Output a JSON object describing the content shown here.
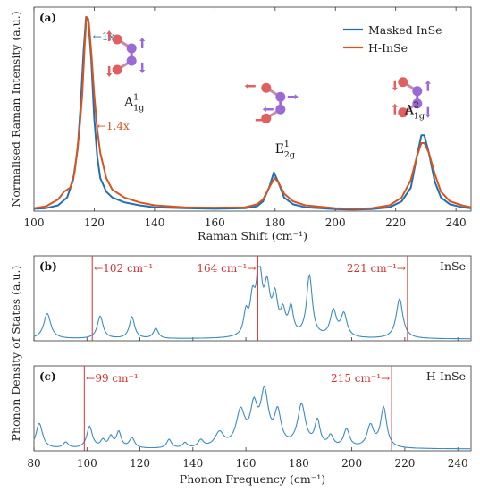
{
  "chart_data": [
    {
      "panel": "(a)",
      "type": "line",
      "xlabel": "Raman Shift (cm⁻¹)",
      "ylabel": "Normalised Raman Intensity (a.u.)",
      "xlim": [
        100,
        245
      ],
      "ylim": [
        0,
        1.05
      ],
      "x_ticks": [
        100,
        120,
        140,
        160,
        180,
        200,
        220,
        240
      ],
      "legend_position": "top-right",
      "grid": false,
      "series": [
        {
          "name": "Masked InSe",
          "color": "#1f6fb2",
          "points": [
            [
              100,
              0.012
            ],
            [
              104,
              0.015
            ],
            [
              108,
              0.03
            ],
            [
              111,
              0.07
            ],
            [
              113,
              0.16
            ],
            [
              114.5,
              0.32
            ],
            [
              115.5,
              0.55
            ],
            [
              116.5,
              0.83
            ],
            [
              117.3,
              1.0
            ],
            [
              118,
              0.99
            ],
            [
              119,
              0.78
            ],
            [
              120,
              0.48
            ],
            [
              121,
              0.28
            ],
            [
              122,
              0.17
            ],
            [
              124,
              0.1
            ],
            [
              126,
              0.07
            ],
            [
              130,
              0.045
            ],
            [
              135,
              0.03
            ],
            [
              140,
              0.02
            ],
            [
              150,
              0.015
            ],
            [
              160,
              0.012
            ],
            [
              170,
              0.015
            ],
            [
              174,
              0.025
            ],
            [
              176,
              0.05
            ],
            [
              178,
              0.12
            ],
            [
              179.6,
              0.2
            ],
            [
              181,
              0.15
            ],
            [
              183,
              0.07
            ],
            [
              186,
              0.035
            ],
            [
              190,
              0.02
            ],
            [
              200,
              0.01
            ],
            [
              206,
              0.008
            ],
            [
              212,
              0.01
            ],
            [
              218,
              0.02
            ],
            [
              222,
              0.05
            ],
            [
              225,
              0.12
            ],
            [
              227,
              0.28
            ],
            [
              228.5,
              0.39
            ],
            [
              229.5,
              0.39
            ],
            [
              231,
              0.3
            ],
            [
              233,
              0.15
            ],
            [
              235,
              0.07
            ],
            [
              238,
              0.035
            ],
            [
              242,
              0.02
            ],
            [
              245,
              0.015
            ]
          ]
        },
        {
          "name": "H-InSe",
          "color": "#d9531e",
          "points": [
            [
              100,
              0.015
            ],
            [
              104,
              0.025
            ],
            [
              108,
              0.06
            ],
            [
              110,
              0.1
            ],
            [
              112,
              0.12
            ],
            [
              113.5,
              0.2
            ],
            [
              115,
              0.4
            ],
            [
              116,
              0.6
            ],
            [
              116.8,
              0.85
            ],
            [
              117.4,
              1.0
            ],
            [
              118.2,
              0.97
            ],
            [
              119,
              0.82
            ],
            [
              120,
              0.6
            ],
            [
              121,
              0.42
            ],
            [
              122,
              0.3
            ],
            [
              124,
              0.17
            ],
            [
              126,
              0.11
            ],
            [
              130,
              0.07
            ],
            [
              135,
              0.045
            ],
            [
              140,
              0.03
            ],
            [
              150,
              0.02
            ],
            [
              160,
              0.018
            ],
            [
              170,
              0.02
            ],
            [
              174,
              0.035
            ],
            [
              176,
              0.06
            ],
            [
              178,
              0.12
            ],
            [
              179.8,
              0.17
            ],
            [
              181,
              0.15
            ],
            [
              183,
              0.09
            ],
            [
              186,
              0.05
            ],
            [
              190,
              0.03
            ],
            [
              200,
              0.015
            ],
            [
              206,
              0.012
            ],
            [
              212,
              0.015
            ],
            [
              218,
              0.03
            ],
            [
              222,
              0.07
            ],
            [
              225,
              0.16
            ],
            [
              227,
              0.28
            ],
            [
              228.5,
              0.35
            ],
            [
              229.5,
              0.35
            ],
            [
              231,
              0.3
            ],
            [
              233,
              0.19
            ],
            [
              235,
              0.1
            ],
            [
              238,
              0.05
            ],
            [
              242,
              0.03
            ],
            [
              245,
              0.02
            ]
          ]
        }
      ],
      "annotations": [
        {
          "text": "←1x",
          "x": 119.5,
          "y": 0.88,
          "color": "#1f6fb2"
        },
        {
          "text": "←1.4x",
          "x": 121,
          "y": 0.42,
          "color": "#d9531e"
        }
      ],
      "mode_labels": [
        {
          "main": "A",
          "sup": "1",
          "sub": "1g",
          "x": 130,
          "y": 0.54
        },
        {
          "main": "E",
          "sup": "1",
          "sub": "2g",
          "x": 180,
          "y": 0.3
        },
        {
          "main": "A",
          "sup": "2",
          "sub": "1g",
          "x": 223,
          "y": 0.5
        }
      ]
    },
    {
      "panel": "(b)",
      "type": "line",
      "label": "InSe",
      "xlim": [
        80,
        245
      ],
      "color": "#3a8cc1",
      "vertical_lines": [
        {
          "x": 102,
          "label": "←102 cm⁻¹",
          "side": "right"
        },
        {
          "x": 164.5,
          "label": "164 cm⁻¹→",
          "side": "left"
        },
        {
          "x": 221,
          "label": "221 cm⁻¹→",
          "side": "left"
        }
      ],
      "peaks": [
        [
          85,
          0.35,
          1.6
        ],
        [
          105,
          0.31,
          1.3
        ],
        [
          117,
          0.3,
          1.2
        ],
        [
          126,
          0.14,
          1.1
        ],
        [
          160,
          0.3,
          1.0
        ],
        [
          162.5,
          0.46,
          1.1
        ],
        [
          165,
          0.95,
          1.2
        ],
        [
          168,
          0.62,
          1.3
        ],
        [
          171,
          0.5,
          1.2
        ],
        [
          174,
          0.3,
          1.1
        ],
        [
          177,
          0.38,
          1.1
        ],
        [
          184,
          0.85,
          1.3
        ],
        [
          193,
          0.36,
          1.4
        ],
        [
          197,
          0.32,
          1.4
        ],
        [
          218,
          0.55,
          1.5
        ]
      ]
    },
    {
      "panel": "(c)",
      "type": "line",
      "label": "H-InSe",
      "xlim": [
        80,
        245
      ],
      "x_ticks": [
        80,
        100,
        120,
        140,
        160,
        180,
        200,
        220,
        240
      ],
      "xlabel": "Phonon Frequency (cm⁻¹)",
      "shared_ylabel": "Phonon Density of States (a.u.)",
      "color": "#3a8cc1",
      "vertical_lines": [
        {
          "x": 99,
          "label": "←99 cm⁻¹",
          "side": "right"
        },
        {
          "x": 215,
          "label": "215 cm⁻¹→",
          "side": "left"
        }
      ],
      "peaks": [
        [
          82,
          0.35,
          1.5
        ],
        [
          92,
          0.08,
          1.2
        ],
        [
          101,
          0.3,
          1.3
        ],
        [
          106,
          0.1,
          1.0
        ],
        [
          109,
          0.15,
          1.0
        ],
        [
          112,
          0.22,
          1.1
        ],
        [
          117,
          0.14,
          1.2
        ],
        [
          131,
          0.12,
          1.1
        ],
        [
          137,
          0.07,
          1.0
        ],
        [
          143,
          0.1,
          1.2
        ],
        [
          150,
          0.2,
          2.0
        ],
        [
          158,
          0.48,
          2.0
        ],
        [
          163,
          0.5,
          1.6
        ],
        [
          167,
          0.72,
          1.8
        ],
        [
          172,
          0.45,
          1.5
        ],
        [
          181,
          0.58,
          1.8
        ],
        [
          187,
          0.35,
          1.2
        ],
        [
          192,
          0.15,
          1.2
        ],
        [
          198,
          0.25,
          1.3
        ],
        [
          207,
          0.3,
          1.5
        ],
        [
          212,
          0.55,
          1.4
        ]
      ]
    }
  ]
}
